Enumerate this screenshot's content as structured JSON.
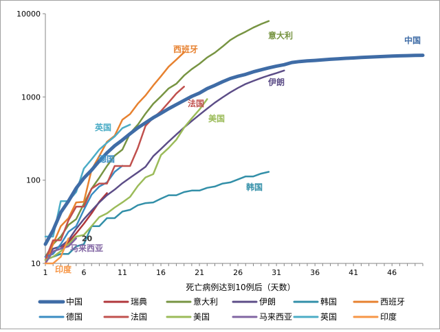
{
  "chart_data": {
    "type": "line",
    "title": "",
    "xlabel": "死亡病例达到10例后（天数）",
    "ylabel": "",
    "yscale": "log",
    "ylim": [
      10,
      10000
    ],
    "xlim": [
      1,
      50
    ],
    "x_ticks": [
      1,
      6,
      11,
      16,
      21,
      26,
      31,
      36,
      41,
      46
    ],
    "x_tick_labels": [
      "1",
      "6",
      "11",
      "16",
      "21",
      "26",
      "31",
      "36",
      "41",
      "46"
    ],
    "y_ticks": [
      10,
      100,
      1000,
      10000
    ],
    "y_tick_labels": [
      "10",
      "100",
      "1000",
      "10000"
    ],
    "grid": false,
    "legend_position": "bottom",
    "annotations": [
      {
        "text": "20",
        "x": 5,
        "y": 20
      }
    ],
    "series": [
      {
        "name": "中国",
        "label": "中国",
        "color": "#3F6CA6",
        "width": 5,
        "points": [
          [
            1,
            17
          ],
          [
            2,
            25
          ],
          [
            3,
            41
          ],
          [
            4,
            56
          ],
          [
            5,
            80
          ],
          [
            6,
            106
          ],
          [
            7,
            132
          ],
          [
            8,
            170
          ],
          [
            9,
            213
          ],
          [
            10,
            259
          ],
          [
            11,
            304
          ],
          [
            12,
            361
          ],
          [
            13,
            425
          ],
          [
            14,
            490
          ],
          [
            15,
            563
          ],
          [
            16,
            636
          ],
          [
            17,
            722
          ],
          [
            18,
            811
          ],
          [
            19,
            908
          ],
          [
            20,
            1016
          ],
          [
            21,
            1113
          ],
          [
            22,
            1259
          ],
          [
            23,
            1380
          ],
          [
            24,
            1523
          ],
          [
            25,
            1665
          ],
          [
            26,
            1770
          ],
          [
            27,
            1868
          ],
          [
            28,
            2004
          ],
          [
            29,
            2118
          ],
          [
            30,
            2236
          ],
          [
            31,
            2345
          ],
          [
            32,
            2442
          ],
          [
            33,
            2592
          ],
          [
            34,
            2663
          ],
          [
            35,
            2715
          ],
          [
            36,
            2744
          ],
          [
            37,
            2788
          ],
          [
            38,
            2835
          ],
          [
            39,
            2870
          ],
          [
            40,
            2912
          ],
          [
            41,
            2943
          ],
          [
            42,
            2981
          ],
          [
            43,
            3012
          ],
          [
            44,
            3042
          ],
          [
            45,
            3070
          ],
          [
            46,
            3097
          ],
          [
            47,
            3119
          ],
          [
            48,
            3136
          ],
          [
            49,
            3158
          ],
          [
            50,
            3169
          ]
        ]
      },
      {
        "name": "瑞典",
        "label": "",
        "color": "#B0373B",
        "width": 2.5,
        "points": [
          [
            1,
            12
          ],
          [
            2,
            14
          ],
          [
            3,
            15
          ],
          [
            4,
            18
          ],
          [
            5,
            23
          ],
          [
            6,
            30
          ],
          [
            7,
            40
          ],
          [
            8,
            55
          ],
          [
            9,
            70
          ]
        ]
      },
      {
        "name": "意大利",
        "label": "意大利",
        "color": "#779442",
        "width": 2.5,
        "points": [
          [
            1,
            12
          ],
          [
            2,
            17
          ],
          [
            3,
            21
          ],
          [
            4,
            29
          ],
          [
            5,
            34
          ],
          [
            6,
            52
          ],
          [
            7,
            79
          ],
          [
            8,
            107
          ],
          [
            9,
            148
          ],
          [
            10,
            197
          ],
          [
            11,
            233
          ],
          [
            12,
            366
          ],
          [
            13,
            463
          ],
          [
            14,
            631
          ],
          [
            15,
            827
          ],
          [
            16,
            1016
          ],
          [
            17,
            1266
          ],
          [
            18,
            1441
          ],
          [
            19,
            1809
          ],
          [
            20,
            2158
          ],
          [
            21,
            2503
          ],
          [
            22,
            2978
          ],
          [
            23,
            3405
          ],
          [
            24,
            4032
          ],
          [
            25,
            4825
          ],
          [
            26,
            5476
          ],
          [
            27,
            6077
          ],
          [
            28,
            6820
          ],
          [
            29,
            7503
          ],
          [
            30,
            8165
          ]
        ]
      },
      {
        "name": "伊朗",
        "label": "伊朗",
        "color": "#5C4D87",
        "width": 2.5,
        "points": [
          [
            1,
            12
          ],
          [
            2,
            15
          ],
          [
            3,
            16
          ],
          [
            4,
            19
          ],
          [
            5,
            26
          ],
          [
            6,
            34
          ],
          [
            7,
            43
          ],
          [
            8,
            54
          ],
          [
            9,
            66
          ],
          [
            10,
            77
          ],
          [
            11,
            92
          ],
          [
            12,
            107
          ],
          [
            13,
            124
          ],
          [
            14,
            145
          ],
          [
            15,
            194
          ],
          [
            16,
            237
          ],
          [
            17,
            291
          ],
          [
            18,
            354
          ],
          [
            19,
            429
          ],
          [
            20,
            514
          ],
          [
            21,
            611
          ],
          [
            22,
            724
          ],
          [
            23,
            853
          ],
          [
            24,
            988
          ],
          [
            25,
            1135
          ],
          [
            26,
            1284
          ],
          [
            27,
            1433
          ],
          [
            28,
            1556
          ],
          [
            29,
            1685
          ],
          [
            30,
            1812
          ],
          [
            31,
            1934
          ],
          [
            32,
            2077
          ]
        ]
      },
      {
        "name": "韩国",
        "label": "韩国",
        "color": "#328FA8",
        "width": 2.5,
        "points": [
          [
            1,
            11
          ],
          [
            2,
            12
          ],
          [
            3,
            13
          ],
          [
            4,
            13
          ],
          [
            5,
            16
          ],
          [
            6,
            17
          ],
          [
            7,
            28
          ],
          [
            8,
            28
          ],
          [
            9,
            35
          ],
          [
            10,
            35
          ],
          [
            11,
            42
          ],
          [
            12,
            44
          ],
          [
            13,
            50
          ],
          [
            14,
            53
          ],
          [
            15,
            54
          ],
          [
            16,
            60
          ],
          [
            17,
            66
          ],
          [
            18,
            66
          ],
          [
            19,
            72
          ],
          [
            20,
            75
          ],
          [
            21,
            75
          ],
          [
            22,
            81
          ],
          [
            23,
            84
          ],
          [
            24,
            91
          ],
          [
            25,
            94
          ],
          [
            26,
            102
          ],
          [
            27,
            111
          ],
          [
            28,
            111
          ],
          [
            29,
            120
          ],
          [
            30,
            126
          ]
        ]
      },
      {
        "name": "西班牙",
        "label": "西班牙",
        "color": "#E7812F",
        "width": 2.5,
        "points": [
          [
            1,
            10
          ],
          [
            2,
            17
          ],
          [
            3,
            28
          ],
          [
            4,
            35
          ],
          [
            5,
            54
          ],
          [
            6,
            55
          ],
          [
            7,
            133
          ],
          [
            8,
            195
          ],
          [
            9,
            289
          ],
          [
            10,
            342
          ],
          [
            11,
            533
          ],
          [
            12,
            623
          ],
          [
            13,
            830
          ],
          [
            14,
            1043
          ],
          [
            15,
            1375
          ],
          [
            16,
            1772
          ],
          [
            17,
            2311
          ],
          [
            18,
            2808
          ],
          [
            19,
            3434
          ]
        ]
      },
      {
        "name": "德国",
        "label": "德国",
        "color": "#3A8CC2",
        "width": 2.5,
        "points": [
          [
            1,
            12
          ],
          [
            2,
            13
          ],
          [
            3,
            17
          ],
          [
            4,
            24
          ],
          [
            5,
            28
          ],
          [
            6,
            44
          ],
          [
            7,
            67
          ],
          [
            8,
            84
          ],
          [
            9,
            94
          ],
          [
            10,
            126
          ],
          [
            11,
            149
          ]
        ]
      },
      {
        "name": "法国",
        "label": "法国",
        "color": "#C0504D",
        "width": 2.5,
        "points": [
          [
            1,
            11
          ],
          [
            2,
            19
          ],
          [
            3,
            19
          ],
          [
            4,
            33
          ],
          [
            5,
            48
          ],
          [
            6,
            48
          ],
          [
            7,
            79
          ],
          [
            8,
            91
          ],
          [
            9,
            91
          ],
          [
            10,
            148
          ],
          [
            11,
            148
          ],
          [
            12,
            148
          ],
          [
            13,
            243
          ],
          [
            14,
            450
          ],
          [
            15,
            562
          ],
          [
            16,
            674
          ],
          [
            17,
            860
          ],
          [
            18,
            1100
          ],
          [
            19,
            1331
          ]
        ]
      },
      {
        "name": "美国",
        "label": "美国",
        "color": "#9BBB59",
        "width": 2.5,
        "points": [
          [
            1,
            11
          ],
          [
            2,
            12
          ],
          [
            3,
            14
          ],
          [
            4,
            17
          ],
          [
            5,
            21
          ],
          [
            6,
            22
          ],
          [
            7,
            28
          ],
          [
            8,
            36
          ],
          [
            9,
            40
          ],
          [
            10,
            47
          ],
          [
            11,
            54
          ],
          [
            12,
            63
          ],
          [
            13,
            85
          ],
          [
            14,
            108
          ],
          [
            15,
            118
          ],
          [
            16,
            200
          ],
          [
            17,
            244
          ],
          [
            18,
            307
          ],
          [
            19,
            427
          ],
          [
            20,
            552
          ],
          [
            21,
            706
          ],
          [
            22,
            942
          ]
        ]
      },
      {
        "name": "马来西亚",
        "label": "马来西亚",
        "color": "#8064A2",
        "width": 2.5,
        "points": [
          [
            1,
            10
          ],
          [
            2,
            14
          ],
          [
            3,
            15
          ],
          [
            4,
            16
          ],
          [
            5,
            20
          ]
        ]
      },
      {
        "name": "英国",
        "label": "英国",
        "color": "#4BACC6",
        "width": 2.5,
        "points": [
          [
            1,
            21
          ],
          [
            2,
            21
          ],
          [
            3,
            56
          ],
          [
            4,
            56
          ],
          [
            5,
            72
          ],
          [
            6,
            138
          ],
          [
            7,
            178
          ],
          [
            8,
            233
          ],
          [
            9,
            281
          ],
          [
            10,
            335
          ],
          [
            11,
            422
          ],
          [
            12,
            465
          ]
        ]
      },
      {
        "name": "印度",
        "label": "印度",
        "color": "#F79646",
        "width": 2.5,
        "points": [
          [
            1,
            10
          ],
          [
            2,
            10
          ],
          [
            3,
            12
          ],
          [
            4,
            20
          ]
        ]
      }
    ],
    "legend": [
      "中国",
      "瑞典",
      "意大利",
      "伊朗",
      "韩国",
      "西班牙",
      "德国",
      "法国",
      "美国",
      "马来西亚",
      "英国",
      "印度"
    ]
  }
}
